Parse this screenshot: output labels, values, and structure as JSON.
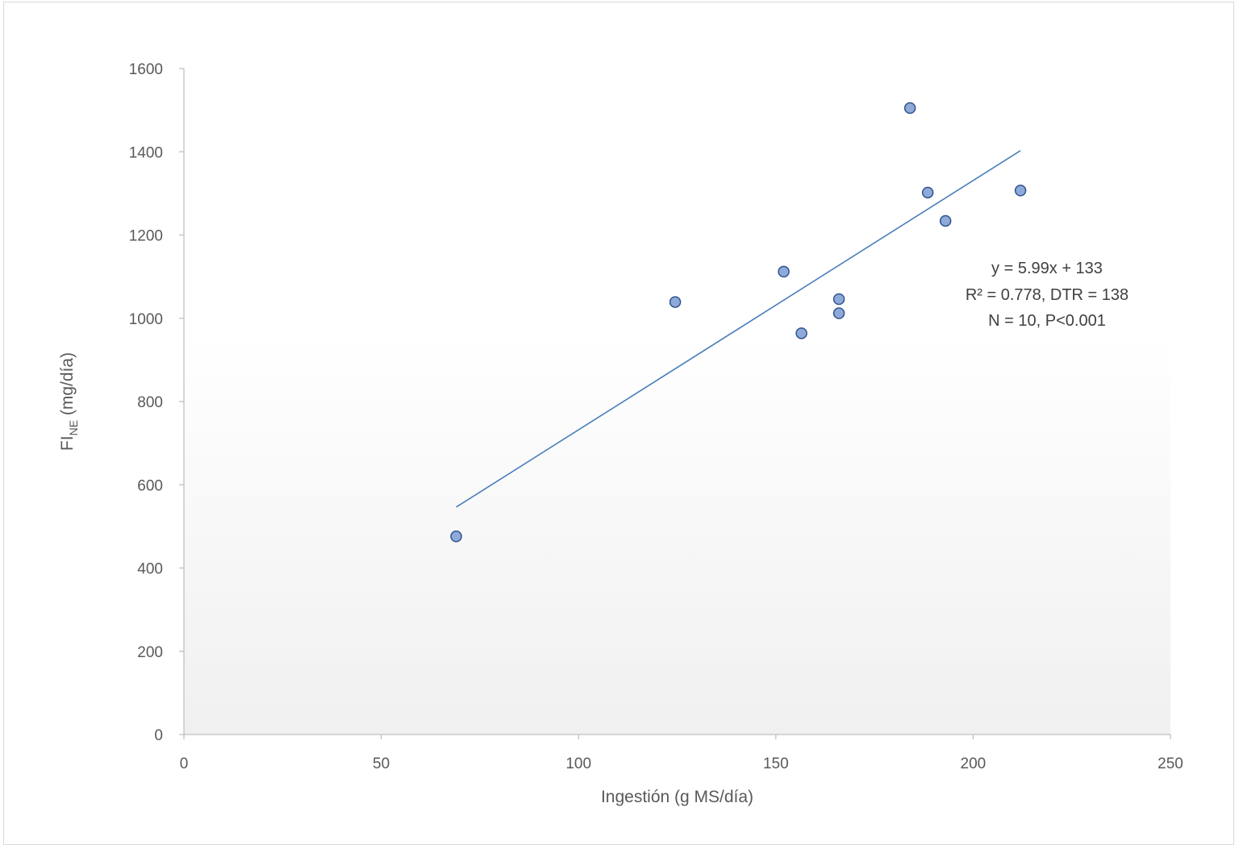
{
  "chart_data": {
    "type": "scatter",
    "title": "",
    "xlabel": "Ingestión (g MS/día)",
    "ylabel": {
      "main": "FI",
      "sub": "NE",
      "rest": " (mg/día)"
    },
    "xlim": [
      0,
      250
    ],
    "ylim": [
      0,
      1600
    ],
    "xticks": [
      0,
      50,
      100,
      150,
      200,
      250
    ],
    "yticks": [
      0,
      200,
      400,
      600,
      800,
      1000,
      1200,
      1400,
      1600
    ],
    "grid": false,
    "points": [
      {
        "x": 69,
        "y": 476
      },
      {
        "x": 124.5,
        "y": 1039
      },
      {
        "x": 152,
        "y": 1112
      },
      {
        "x": 156.5,
        "y": 964
      },
      {
        "x": 166,
        "y": 1046
      },
      {
        "x": 166,
        "y": 1012
      },
      {
        "x": 184,
        "y": 1505
      },
      {
        "x": 188.5,
        "y": 1302
      },
      {
        "x": 193,
        "y": 1234
      },
      {
        "x": 212,
        "y": 1307
      }
    ],
    "trendline": {
      "slope": 5.99,
      "intercept": 133,
      "x_range": [
        69,
        212
      ]
    },
    "annotation": [
      "y = 5.99x + 133",
      "R² = 0.778, DTR = 138",
      "N = 10, P<0.001"
    ],
    "colors": {
      "marker_fill": "#8eaadb",
      "marker_stroke": "#2f528f",
      "trendline": "#4a7ebb",
      "axis": "#bfbfbf",
      "plot_gradient_top": "#ffffff",
      "plot_gradient_bottom": "#f0f0f0"
    }
  }
}
